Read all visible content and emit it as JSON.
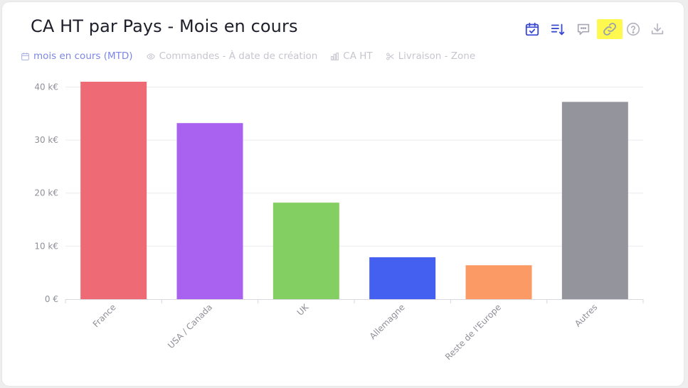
{
  "card": {
    "title": "CA HT par Pays - Mois en cours"
  },
  "toolbar": {
    "items": [
      {
        "name": "calendar-check-icon",
        "color": "#3b4bd1"
      },
      {
        "name": "sort-desc-icon",
        "color": "#3b4bd1"
      },
      {
        "name": "comment-icon",
        "color": "#a7a7b3"
      },
      {
        "name": "link-icon",
        "color": "#9aa0ad",
        "highlight": "#fff94f"
      },
      {
        "name": "help-icon",
        "color": "#b5b5bf"
      },
      {
        "name": "download-icon",
        "color": "#b5b5bf"
      }
    ]
  },
  "filters": [
    {
      "label": "mois en cours (MTD)",
      "icon": "calendar-icon",
      "active": true
    },
    {
      "label": "Commandes - À date de création",
      "icon": "eye-icon",
      "active": false
    },
    {
      "label": "CA HT",
      "icon": "bar-chart-icon",
      "active": false
    },
    {
      "label": "Livraison - Zone",
      "icon": "scissors-icon",
      "active": false
    }
  ],
  "chart_data": {
    "type": "bar",
    "categories": [
      "France",
      "USA / Canada",
      "UK",
      "Allemagne",
      "Reste de l'Europe",
      "Autres"
    ],
    "values": [
      41,
      33.2,
      18.2,
      7.9,
      6.4,
      37.2
    ],
    "unit": "k€",
    "ylim": [
      0,
      41
    ],
    "yticks": [
      0,
      10,
      20,
      30,
      40
    ],
    "ytick_labels": [
      "0 €",
      "10 k€",
      "20 k€",
      "30 k€",
      "40 k€"
    ],
    "colors": [
      "#ee6a74",
      "#a962f0",
      "#84cf61",
      "#4360f0",
      "#fc9a66",
      "#94949c"
    ],
    "grid": true,
    "legend": "none"
  }
}
